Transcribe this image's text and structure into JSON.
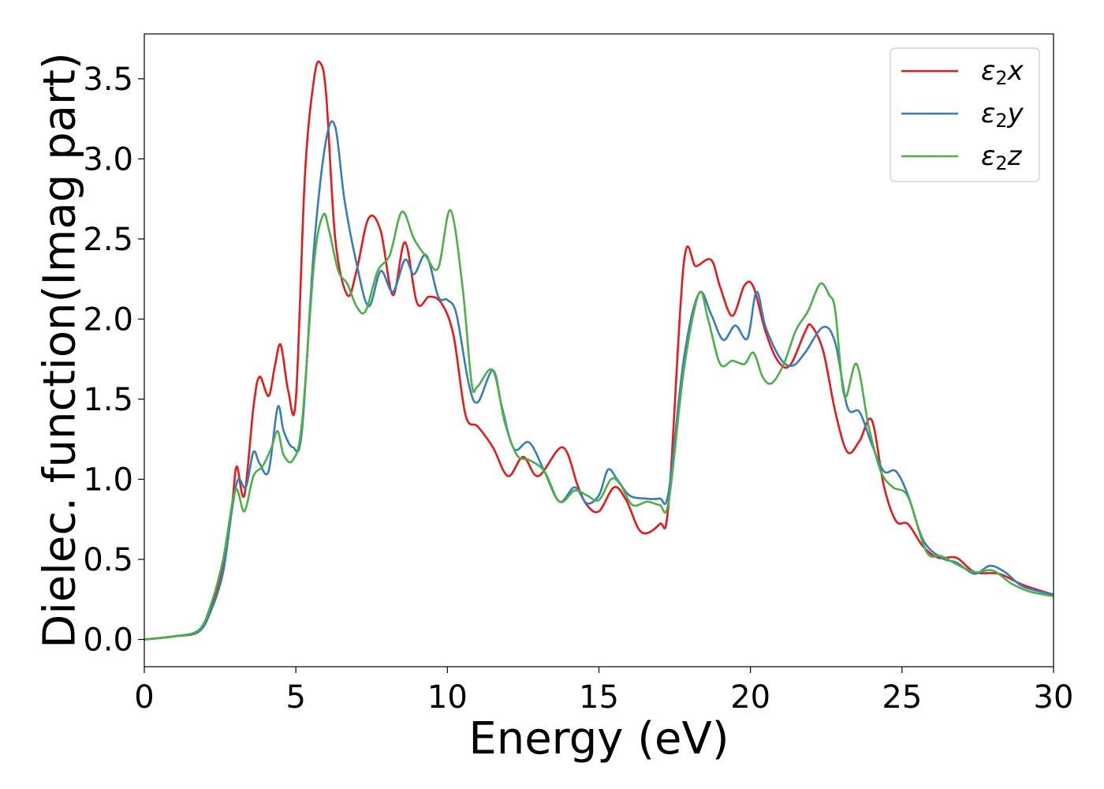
{
  "chart_data": {
    "type": "line",
    "title": "",
    "xlabel": "Energy (eV)",
    "ylabel": "Dielec. function(Imag part)",
    "xlim": [
      0,
      30
    ],
    "ylim": [
      -0.17,
      3.78
    ],
    "xticks": [
      0,
      5,
      10,
      15,
      20,
      25,
      30
    ],
    "xtick_labels": [
      "0",
      "5",
      "10",
      "15",
      "20",
      "25",
      "30"
    ],
    "yticks": [
      0.0,
      0.5,
      1.0,
      1.5,
      2.0,
      2.5,
      3.0,
      3.5
    ],
    "ytick_labels": [
      "0.0",
      "0.5",
      "1.0",
      "1.5",
      "2.0",
      "2.5",
      "3.0",
      "3.5"
    ],
    "grid": false,
    "legend_position": "top-right",
    "series": [
      {
        "name": "ε₂x",
        "legend": {
          "base": "ε",
          "sub": "2",
          "suffix": "x"
        },
        "color": "#e41a1c",
        "x": [
          0,
          1,
          1.8,
          2.2,
          2.6,
          2.9,
          3.05,
          3.3,
          3.6,
          3.8,
          4.1,
          4.3,
          4.5,
          4.75,
          5.0,
          5.3,
          5.6,
          5.8,
          6.0,
          6.3,
          6.7,
          7.0,
          7.4,
          7.8,
          8.2,
          8.6,
          9.0,
          9.4,
          9.8,
          10.2,
          10.6,
          11.0,
          11.5,
          12.0,
          12.5,
          13.0,
          13.8,
          14.3,
          14.6,
          15.0,
          15.5,
          15.9,
          16.4,
          17.0,
          17.3,
          17.8,
          18.2,
          18.7,
          19.0,
          19.4,
          19.8,
          20.1,
          20.5,
          20.9,
          21.3,
          21.8,
          22.0,
          22.4,
          22.8,
          23.2,
          23.6,
          24.0,
          24.4,
          24.8,
          25.2,
          25.7,
          26.2,
          26.8,
          27.4,
          28.2,
          29.0,
          30.0
        ],
        "y": [
          0,
          0.02,
          0.05,
          0.2,
          0.45,
          0.85,
          1.08,
          0.9,
          1.45,
          1.64,
          1.52,
          1.7,
          1.84,
          1.55,
          1.5,
          2.9,
          3.5,
          3.6,
          3.4,
          2.5,
          2.15,
          2.3,
          2.63,
          2.55,
          2.15,
          2.48,
          2.1,
          2.14,
          2.1,
          1.9,
          1.4,
          1.33,
          1.2,
          1.02,
          1.14,
          1.02,
          1.2,
          0.96,
          0.84,
          0.8,
          0.95,
          0.87,
          0.67,
          0.72,
          0.85,
          2.35,
          2.33,
          2.37,
          2.2,
          2.02,
          2.21,
          2.2,
          1.92,
          1.74,
          1.71,
          1.92,
          1.96,
          1.8,
          1.42,
          1.17,
          1.24,
          1.37,
          0.96,
          0.74,
          0.72,
          0.58,
          0.51,
          0.51,
          0.42,
          0.41,
          0.34,
          0.28
        ]
      },
      {
        "name": "ε₂y",
        "legend": {
          "base": "ε",
          "sub": "2",
          "suffix": "y"
        },
        "color": "#377eb8",
        "x": [
          0,
          1,
          1.8,
          2.2,
          2.6,
          2.9,
          3.1,
          3.35,
          3.6,
          3.8,
          4.1,
          4.4,
          4.6,
          4.9,
          5.2,
          5.6,
          6.0,
          6.3,
          6.6,
          7.0,
          7.4,
          7.8,
          8.2,
          8.6,
          8.9,
          9.3,
          9.7,
          10.0,
          10.3,
          10.7,
          11.0,
          11.5,
          11.8,
          12.2,
          12.7,
          13.2,
          13.7,
          14.2,
          14.6,
          15.0,
          15.3,
          15.6,
          16.0,
          16.5,
          17.0,
          17.3,
          17.8,
          18.3,
          18.7,
          19.1,
          19.5,
          19.9,
          20.2,
          20.5,
          21.0,
          21.4,
          21.8,
          22.4,
          22.8,
          23.2,
          23.6,
          24.0,
          24.4,
          24.8,
          25.2,
          25.7,
          26.3,
          26.8,
          27.4,
          27.9,
          28.4,
          29.0,
          30.0
        ],
        "y": [
          0,
          0.02,
          0.05,
          0.18,
          0.42,
          0.82,
          1.0,
          0.95,
          1.17,
          1.1,
          1.05,
          1.45,
          1.3,
          1.2,
          1.3,
          2.45,
          3.12,
          3.2,
          2.75,
          2.35,
          2.08,
          2.3,
          2.17,
          2.37,
          2.28,
          2.4,
          2.14,
          2.12,
          2.03,
          1.6,
          1.48,
          1.68,
          1.45,
          1.19,
          1.23,
          1.05,
          0.86,
          0.95,
          0.85,
          0.9,
          1.06,
          1.0,
          0.9,
          0.88,
          0.88,
          0.92,
          1.75,
          2.16,
          2.03,
          1.87,
          1.96,
          1.88,
          2.17,
          1.95,
          1.75,
          1.71,
          1.79,
          1.95,
          1.85,
          1.45,
          1.42,
          1.22,
          1.05,
          1.05,
          0.9,
          0.62,
          0.51,
          0.48,
          0.41,
          0.46,
          0.42,
          0.33,
          0.28
        ]
      },
      {
        "name": "ε₂z",
        "legend": {
          "base": "ε",
          "sub": "2",
          "suffix": "z"
        },
        "color": "#4daf4a",
        "x": [
          0,
          1,
          1.8,
          2.2,
          2.6,
          3.0,
          3.3,
          3.6,
          3.9,
          4.2,
          4.4,
          4.6,
          4.9,
          5.2,
          5.6,
          5.9,
          6.1,
          6.4,
          6.7,
          7.0,
          7.3,
          7.7,
          8.1,
          8.5,
          8.9,
          9.3,
          9.7,
          10.1,
          10.5,
          10.8,
          11.0,
          11.5,
          11.9,
          12.3,
          12.7,
          13.2,
          13.7,
          14.2,
          14.6,
          15.0,
          15.4,
          15.7,
          16.1,
          16.6,
          17.0,
          17.3,
          17.8,
          18.3,
          18.6,
          19.0,
          19.4,
          19.8,
          20.1,
          20.4,
          20.7,
          21.1,
          21.5,
          21.9,
          22.3,
          22.6,
          22.8,
          23.1,
          23.5,
          23.9,
          24.3,
          24.7,
          25.2,
          25.8,
          26.3,
          26.8,
          27.4,
          28.0,
          28.6,
          29.2,
          30.0
        ],
        "y": [
          0,
          0.02,
          0.06,
          0.22,
          0.5,
          0.93,
          0.8,
          1.02,
          1.08,
          1.2,
          1.3,
          1.15,
          1.12,
          1.35,
          2.35,
          2.65,
          2.55,
          2.3,
          2.22,
          2.08,
          2.05,
          2.3,
          2.4,
          2.67,
          2.5,
          2.39,
          2.32,
          2.68,
          2.2,
          1.6,
          1.58,
          1.68,
          1.35,
          1.15,
          1.12,
          1.05,
          0.86,
          0.93,
          0.9,
          0.87,
          1.0,
          0.97,
          0.84,
          0.86,
          0.84,
          0.86,
          1.68,
          2.16,
          2.0,
          1.72,
          1.74,
          1.72,
          1.79,
          1.64,
          1.6,
          1.72,
          1.93,
          2.05,
          2.22,
          2.15,
          2.05,
          1.52,
          1.72,
          1.33,
          1.05,
          0.95,
          0.89,
          0.55,
          0.52,
          0.47,
          0.42,
          0.43,
          0.35,
          0.3,
          0.27
        ]
      }
    ]
  }
}
